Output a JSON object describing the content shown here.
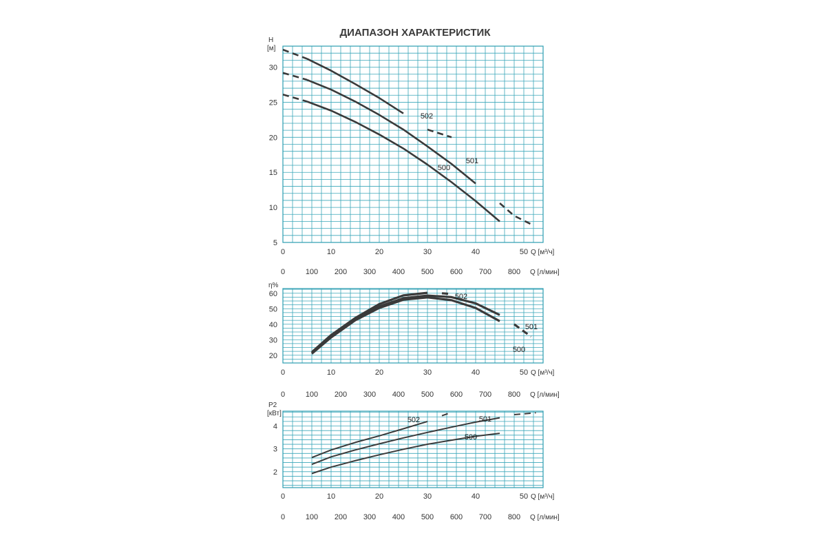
{
  "title": "ДИАПАЗОН ХАРАКТЕРИСТИК",
  "colors": {
    "grid": "#2b9cb0",
    "curve": "#3a3a3a"
  },
  "x_axis_common": {
    "q_m3h_ticks": [
      "0",
      "10",
      "20",
      "30",
      "40",
      "50"
    ],
    "q_m3h_unit": "Q [м³/ч]",
    "q_lmin_ticks": [
      "0",
      "100",
      "200",
      "300",
      "400",
      "500",
      "600",
      "700",
      "800"
    ],
    "q_lmin_unit": "Q [л/мин]"
  },
  "chart_data": [
    {
      "id": "head",
      "type": "line",
      "ylabel": "H",
      "yunit": "[м]",
      "yticks": [
        "5",
        "10",
        "15",
        "20",
        "25",
        "30"
      ],
      "xlim": [
        0,
        54
      ],
      "ylim": [
        5,
        33
      ],
      "series": [
        {
          "name": "502",
          "x": [
            0,
            5,
            10,
            15,
            20,
            25,
            30,
            35
          ],
          "y": [
            32.5,
            31.2,
            29.5,
            27.6,
            25.6,
            23.4,
            21.1,
            20.0
          ]
        },
        {
          "name": "501",
          "x": [
            0,
            5,
            10,
            15,
            20,
            25,
            30,
            35,
            40,
            45,
            48,
            51.5
          ],
          "y": [
            29.2,
            28.2,
            26.8,
            25.1,
            23.2,
            21.1,
            18.7,
            16.2,
            13.4,
            10.6,
            8.8,
            7.6
          ]
        },
        {
          "name": "500",
          "x": [
            0,
            5,
            10,
            15,
            20,
            25,
            30,
            35,
            40,
            45,
            48.5
          ],
          "y": [
            26.1,
            25.1,
            23.8,
            22.2,
            20.4,
            18.4,
            16.1,
            13.6,
            10.9,
            8.0,
            6.1
          ]
        }
      ]
    },
    {
      "id": "efficiency",
      "type": "line",
      "ylabel": "η%",
      "yticks": [
        "20",
        "30",
        "40",
        "50",
        "60"
      ],
      "xlim": [
        0,
        54
      ],
      "ylim": [
        15,
        63
      ],
      "series": [
        {
          "name": "502",
          "x": [
            6,
            10,
            15,
            20,
            25,
            30,
            33,
            35
          ],
          "y": [
            22,
            33,
            44,
            53,
            58.6,
            60.3,
            60.0,
            59.5
          ]
        },
        {
          "name": "501",
          "x": [
            6,
            10,
            15,
            20,
            25,
            30,
            35,
            40,
            45,
            48,
            51.5
          ],
          "y": [
            21.5,
            32,
            43,
            51.5,
            56.8,
            58.5,
            57.5,
            53.5,
            46,
            40,
            32
          ]
        },
        {
          "name": "500",
          "x": [
            6,
            10,
            15,
            20,
            25,
            30,
            35,
            40,
            45,
            48.5
          ],
          "y": [
            21,
            31.5,
            42.5,
            50.5,
            55.8,
            57.3,
            55.5,
            50.5,
            42,
            31
          ]
        }
      ]
    },
    {
      "id": "power",
      "type": "line",
      "ylabel": "P2",
      "yunit": "[кВт]",
      "yticks": [
        "2",
        "3",
        "4"
      ],
      "xlim": [
        0,
        54
      ],
      "ylim": [
        1.3,
        4.65
      ],
      "series": [
        {
          "name": "502",
          "x": [
            6,
            10,
            15,
            20,
            25,
            30,
            33,
            35
          ],
          "y": [
            2.62,
            2.95,
            3.28,
            3.57,
            3.88,
            4.2,
            4.45,
            4.6
          ]
        },
        {
          "name": "501",
          "x": [
            6,
            10,
            15,
            20,
            25,
            30,
            35,
            40,
            45,
            48,
            52.5
          ],
          "y": [
            2.32,
            2.65,
            2.95,
            3.22,
            3.48,
            3.72,
            3.95,
            4.17,
            4.36,
            4.5,
            4.58
          ]
        },
        {
          "name": "500",
          "x": [
            6,
            10,
            15,
            20,
            25,
            30,
            35,
            40,
            45,
            49
          ],
          "y": [
            1.92,
            2.2,
            2.48,
            2.74,
            2.98,
            3.2,
            3.38,
            3.55,
            3.68,
            3.75
          ]
        }
      ]
    }
  ]
}
